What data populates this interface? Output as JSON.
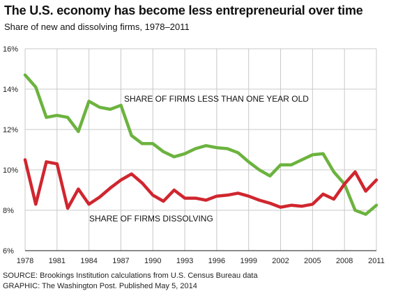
{
  "header": {
    "title": "The U.S. economy has become less entrepreneurial over time",
    "subtitle": "Share of new and dissolving firms, 1978–2011"
  },
  "footer": {
    "source": "SOURCE: Brookings Institution calculations from U.S. Census Bureau data",
    "graphic": "GRAPHIC: The Washington Post. Published May 5, 2014"
  },
  "colors": {
    "new_firms": "#6cb33f",
    "dissolving": "#d0262f",
    "grid": "#c8c8c8",
    "axis": "#444444"
  },
  "chart_data": {
    "type": "line",
    "title": "The U.S. economy has become less entrepreneurial over time",
    "subtitle": "Share of new and dissolving firms, 1978–2011",
    "x": [
      1978,
      1979,
      1980,
      1981,
      1982,
      1983,
      1984,
      1985,
      1986,
      1987,
      1988,
      1989,
      1990,
      1991,
      1992,
      1993,
      1994,
      1995,
      1996,
      1997,
      1998,
      1999,
      2000,
      2001,
      2002,
      2003,
      2004,
      2005,
      2006,
      2007,
      2008,
      2009,
      2010,
      2011
    ],
    "xticks": [
      1978,
      1981,
      1984,
      1987,
      1990,
      1993,
      1996,
      1999,
      2002,
      2005,
      2008,
      2011
    ],
    "yticks": [
      6,
      8,
      10,
      12,
      14,
      16
    ],
    "ytick_labels": [
      "6%",
      "8%",
      "10%",
      "12%",
      "14%",
      "16%"
    ],
    "ylim": [
      6,
      16
    ],
    "xlim": [
      1978,
      2011
    ],
    "grid": true,
    "series": [
      {
        "name": "SHARE OF FIRMS LESS THAN ONE YEAR OLD",
        "color": "#6cb33f",
        "values": [
          14.7,
          14.1,
          12.6,
          12.7,
          12.6,
          11.9,
          13.4,
          13.1,
          13.0,
          13.2,
          11.7,
          11.3,
          11.3,
          10.9,
          10.65,
          10.8,
          11.05,
          11.2,
          11.1,
          11.05,
          10.85,
          10.4,
          10.0,
          9.7,
          10.25,
          10.25,
          10.5,
          10.75,
          10.8,
          9.9,
          9.3,
          8.0,
          7.8,
          8.25
        ]
      },
      {
        "name": "SHARE OF FIRMS DISSOLVING",
        "color": "#d0262f",
        "values": [
          10.5,
          8.3,
          10.4,
          10.3,
          8.1,
          9.05,
          8.3,
          8.65,
          9.1,
          9.5,
          9.8,
          9.35,
          8.75,
          8.45,
          9.0,
          8.6,
          8.6,
          8.5,
          8.7,
          8.75,
          8.85,
          8.7,
          8.5,
          8.35,
          8.15,
          8.25,
          8.2,
          8.3,
          8.8,
          8.55,
          9.3,
          9.9,
          8.95,
          9.5
        ]
      }
    ]
  }
}
